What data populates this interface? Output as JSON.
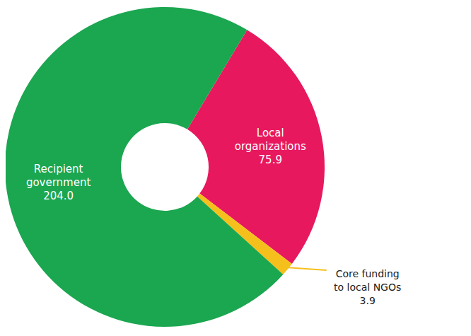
{
  "chart_data": {
    "type": "pie",
    "categories": [
      "Local organizations",
      "Core funding to local NGOs",
      "Recipient government"
    ],
    "values": [
      75.9,
      3.9,
      204.0
    ],
    "value_labels": [
      "75.9",
      "3.9",
      "204.0"
    ],
    "colors": [
      "#e8185e",
      "#f6c01c",
      "#1ba650"
    ],
    "data_labels": true
  }
}
